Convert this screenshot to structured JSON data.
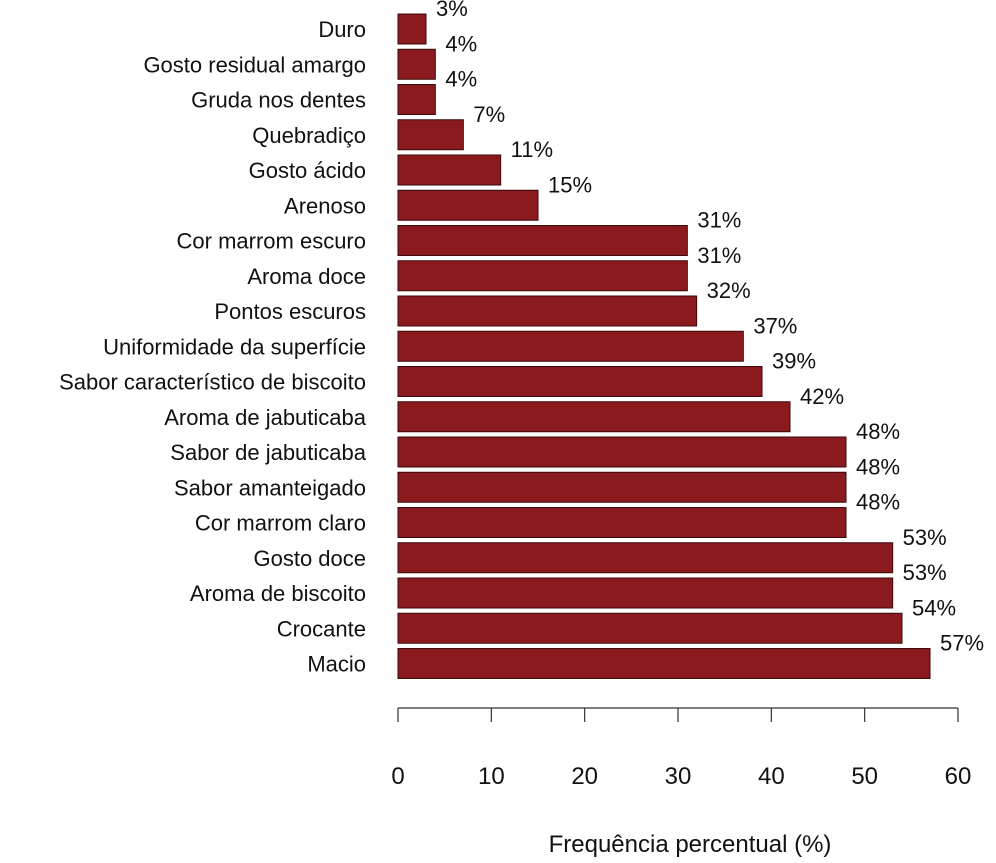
{
  "chart_data": {
    "type": "bar",
    "orientation": "horizontal",
    "categories": [
      "Duro",
      "Gosto residual amargo",
      "Gruda nos dentes",
      "Quebradiço",
      "Gosto ácido",
      "Arenoso",
      "Cor marrom escuro",
      "Aroma doce",
      "Pontos escuros",
      "Uniformidade da superfície",
      "Sabor característico de biscoito",
      "Aroma de jabuticaba",
      "Sabor de jabuticaba",
      "Sabor amanteigado",
      "Cor marrom claro",
      "Gosto doce",
      "Aroma de biscoito",
      "Crocante",
      "Macio"
    ],
    "values": [
      3,
      4,
      4,
      7,
      11,
      15,
      31,
      31,
      32,
      37,
      39,
      42,
      48,
      48,
      48,
      53,
      53,
      54,
      57
    ],
    "value_labels": [
      "3%",
      "4%",
      "4%",
      "7%",
      "11%",
      "15%",
      "31%",
      "31%",
      "32%",
      "37%",
      "39%",
      "42%",
      "48%",
      "48%",
      "48%",
      "53%",
      "53%",
      "54%",
      "57%"
    ],
    "xlabel": "Frequência percentual (%)",
    "ylabel": "",
    "xlim": [
      0,
      60
    ],
    "xticks": [
      0,
      10,
      20,
      30,
      40,
      50,
      60
    ],
    "xtick_labels": [
      "0",
      "10",
      "20",
      "30",
      "40",
      "50",
      "60"
    ],
    "grid": false,
    "bar_color": "#8b1a1f"
  }
}
